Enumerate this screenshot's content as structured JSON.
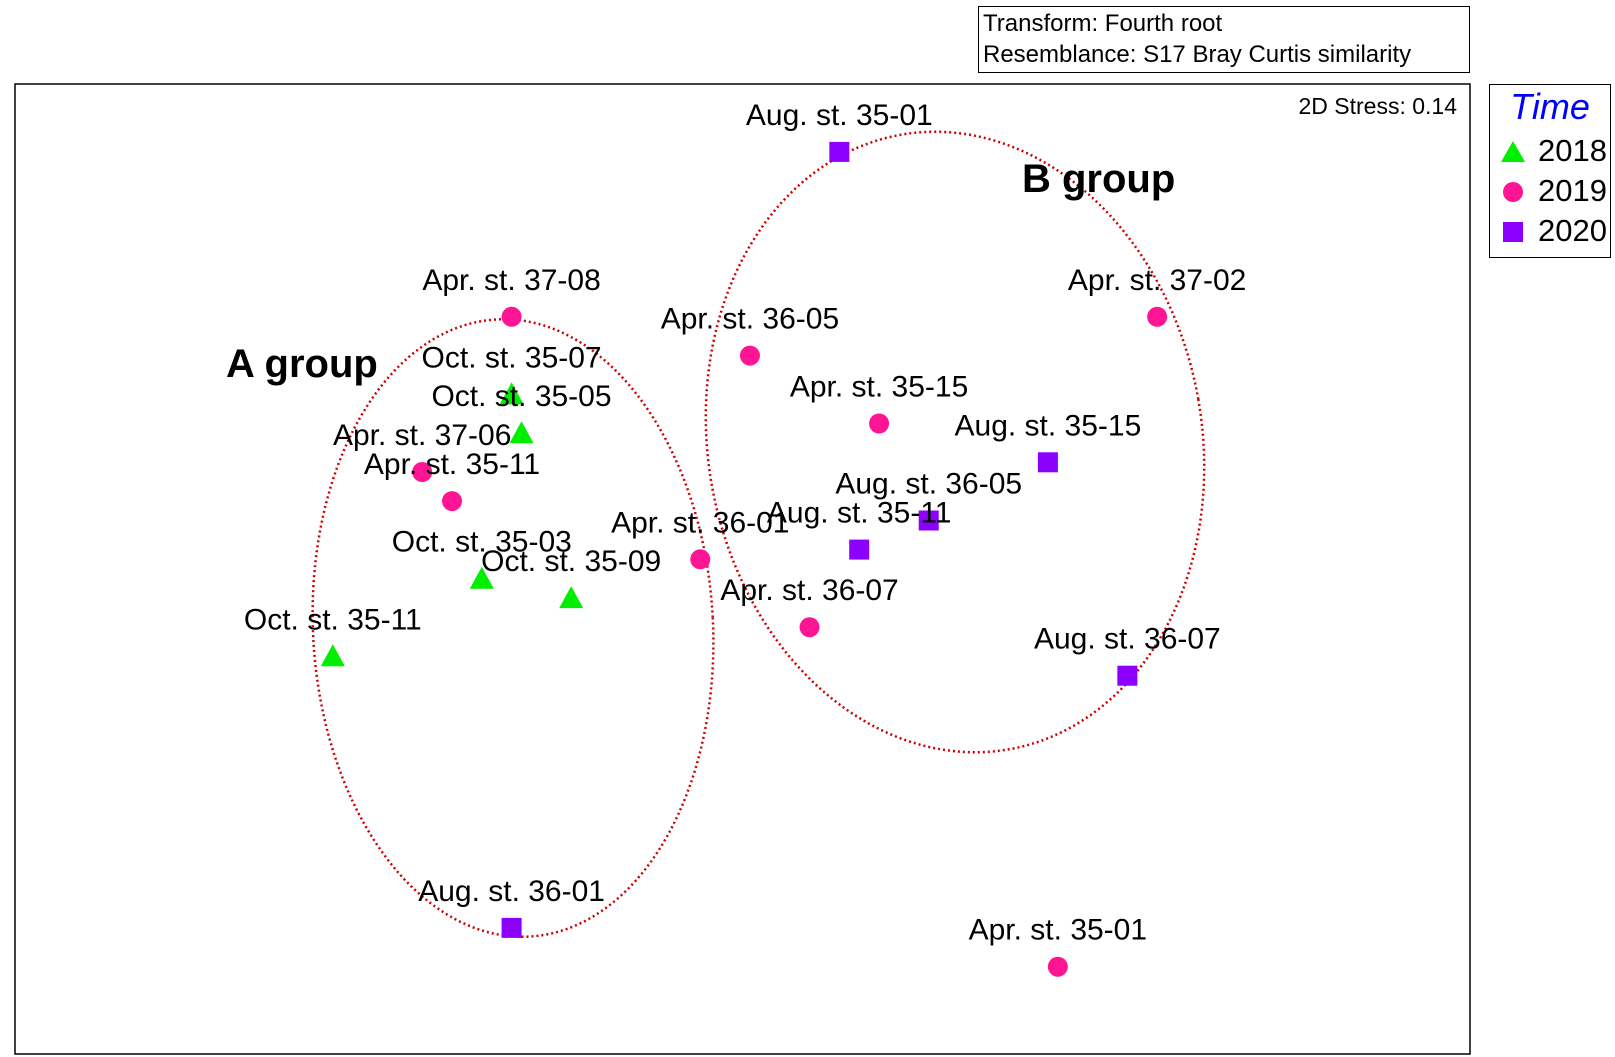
{
  "info": {
    "transform": "Transform: Fourth root",
    "resemblance": "Resemblance: S17 Bray Curtis similarity"
  },
  "stress_label": "2D Stress: 0.14",
  "legend": {
    "title": "Time",
    "items": [
      {
        "label": "2018",
        "shape": "triangle",
        "color": "#00ee00"
      },
      {
        "label": "2019",
        "shape": "circle",
        "color": "#ff1493"
      },
      {
        "label": "2020",
        "shape": "square",
        "color": "#8b00ff"
      }
    ]
  },
  "group_labels": [
    "A group",
    "B group"
  ],
  "chart_data": {
    "type": "scatter",
    "title": "",
    "xlabel": "",
    "ylabel": "",
    "grid": false,
    "legend_position": "right",
    "series": [
      {
        "name": "2018",
        "shape": "triangle",
        "color": "#00ee00",
        "points": [
          {
            "label": "Oct. st. 35-07",
            "x": 0.5,
            "y": 0.68
          },
          {
            "label": "Oct. st. 35-05",
            "x": 0.51,
            "y": 0.64
          },
          {
            "label": "Oct. st. 35-03",
            "x": 0.47,
            "y": 0.49
          },
          {
            "label": "Oct. st. 35-09",
            "x": 0.56,
            "y": 0.47
          },
          {
            "label": "Oct. st. 35-11",
            "x": 0.32,
            "y": 0.41
          }
        ]
      },
      {
        "name": "2019",
        "shape": "circle",
        "color": "#ff1493",
        "points": [
          {
            "label": "Apr. st. 37-08",
            "x": 0.5,
            "y": 0.76
          },
          {
            "label": "Apr. st. 37-06",
            "x": 0.41,
            "y": 0.6
          },
          {
            "label": "Apr. st. 35-11",
            "x": 0.44,
            "y": 0.57
          },
          {
            "label": "Apr. st. 36-05",
            "x": 0.74,
            "y": 0.72
          },
          {
            "label": "Apr. st. 37-02",
            "x": 1.15,
            "y": 0.76
          },
          {
            "label": "Apr. st. 35-15",
            "x": 0.87,
            "y": 0.65
          },
          {
            "label": "Apr. st. 36-01",
            "x": 0.69,
            "y": 0.51
          },
          {
            "label": "Apr. st. 36-07",
            "x": 0.8,
            "y": 0.44
          },
          {
            "label": "Apr. st. 35-01",
            "x": 1.05,
            "y": 0.09
          }
        ]
      },
      {
        "name": "2020",
        "shape": "square",
        "color": "#8b00ff",
        "points": [
          {
            "label": "Aug. st. 35-01",
            "x": 0.83,
            "y": 0.93
          },
          {
            "label": "Aug. st. 35-15",
            "x": 1.04,
            "y": 0.61
          },
          {
            "label": "Aug. st. 36-05",
            "x": 0.92,
            "y": 0.55
          },
          {
            "label": "Aug. st. 35-11",
            "x": 0.85,
            "y": 0.52
          },
          {
            "label": "Aug. st. 36-07",
            "x": 1.12,
            "y": 0.39
          },
          {
            "label": "Aug. st. 36-01",
            "x": 0.5,
            "y": 0.13
          }
        ]
      }
    ],
    "xlim": [
      0,
      1.465
    ],
    "ylim": [
      0,
      1
    ]
  }
}
